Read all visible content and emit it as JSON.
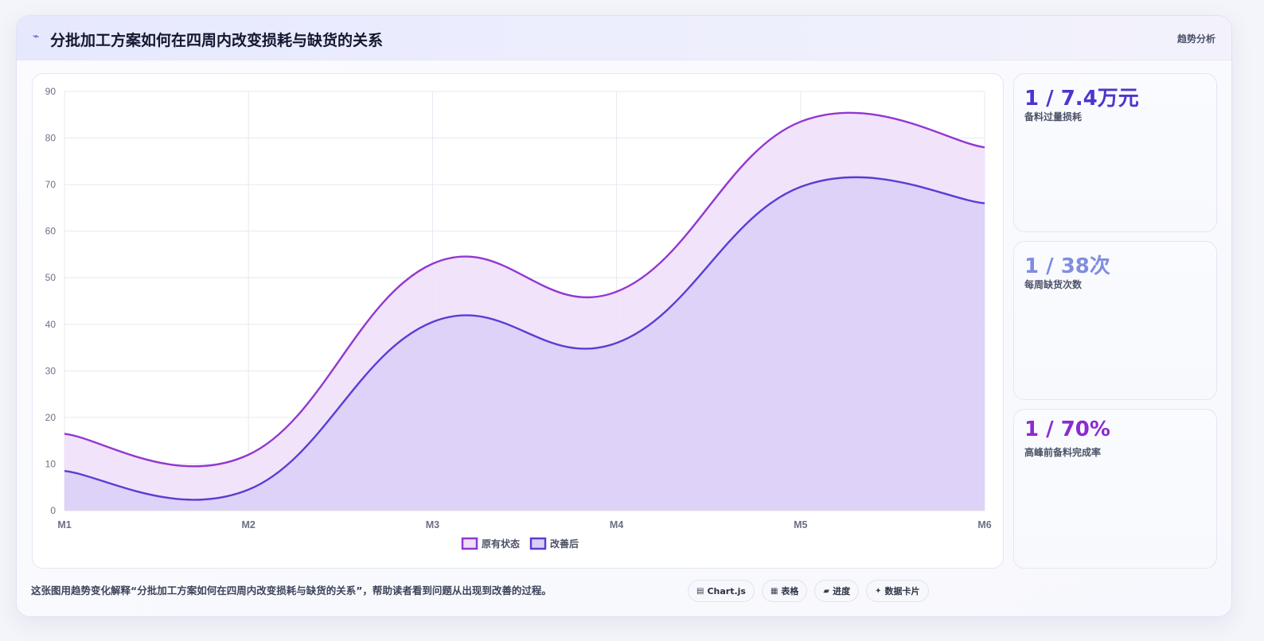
{
  "header": {
    "icon": "lightning-icon",
    "title": "分批加工方案如何在四周内改变损耗与缺货的关系",
    "tag": "趋势分析"
  },
  "kpis": [
    {
      "value": "1 / 7.4万元",
      "label": "备料过量损耗",
      "color": "#4b36cf"
    },
    {
      "value": "1 / 38次",
      "label": "每周缺货次数",
      "color": "#7f8de0"
    },
    {
      "value": "1 / 70%",
      "label": "高峰前备料完成率",
      "color": "#8a2bd0"
    }
  ],
  "caption": "这张图用趋势变化解释“分批加工方案如何在四周内改变损耗与缺货的关系”，帮助读者看到问题从出现到改善的过程。",
  "chips": [
    {
      "icon": "chart-icon",
      "glyph": "▤",
      "label": "Chart.js"
    },
    {
      "icon": "table-icon",
      "glyph": "▦",
      "label": "表格"
    },
    {
      "icon": "progress-icon",
      "glyph": "▰",
      "label": "进度"
    },
    {
      "icon": "sparkle-icon",
      "glyph": "✦",
      "label": "数据卡片"
    }
  ],
  "chart_data": {
    "type": "area",
    "categories": [
      "M1",
      "M2",
      "M3",
      "M4",
      "M5",
      "M6"
    ],
    "series": [
      {
        "name": "原有状态",
        "values": [
          16.5,
          12,
          53,
          47,
          83.5,
          78
        ],
        "color": "#9237d2",
        "fill": "#efe0f8"
      },
      {
        "name": "改善后",
        "values": [
          8.5,
          4.5,
          40.5,
          36,
          69.5,
          66
        ],
        "color": "#5a3dd4",
        "fill": "#dccff7"
      }
    ],
    "ylim": [
      0,
      90
    ],
    "yticks": [
      0,
      10,
      20,
      30,
      40,
      50,
      60,
      70,
      80,
      90
    ],
    "grid": true,
    "legend_position": "bottom",
    "smooth": true
  }
}
